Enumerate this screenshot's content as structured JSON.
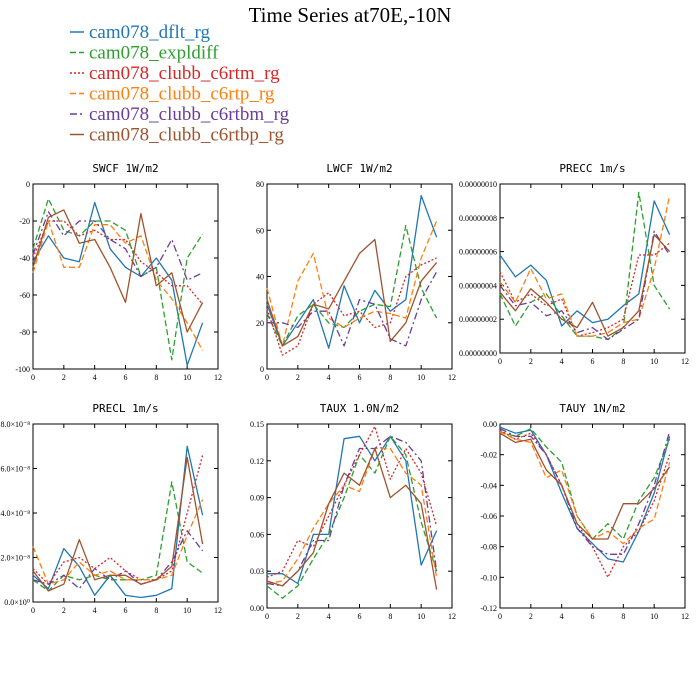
{
  "title": "Time Series at70E,-10N",
  "colors": {
    "axis": "#000000",
    "background": "#ffffff"
  },
  "legend": [
    {
      "name": "cam078_dflt_rg",
      "color": "#1f77b4",
      "dash": "solid"
    },
    {
      "name": "cam078_expldiff",
      "color": "#2ca02c",
      "dash": "dashed"
    },
    {
      "name": "cam078_clubb_c6rtm_rg",
      "color": "#d62728",
      "dash": "dotted"
    },
    {
      "name": "cam078_clubb_c6rtp_rg",
      "color": "#ff7f0e",
      "dash": "dashed"
    },
    {
      "name": "cam078_clubb_c6rtbm_rg",
      "color": "#6a3d9a",
      "dash": "dashdot"
    },
    {
      "name": "cam078_clubb_c6rtbp_rg",
      "color": "#a0522d",
      "dash": "solid"
    }
  ],
  "chart_data": [
    {
      "type": "line",
      "title": "SWCF   1W/m2",
      "x": [
        0,
        1,
        2,
        3,
        4,
        5,
        6,
        7,
        8,
        9,
        10,
        11
      ],
      "xlim": [
        0,
        12
      ],
      "ylim": [
        -100,
        0
      ],
      "xticks": [
        0,
        2,
        4,
        6,
        8,
        10,
        12
      ],
      "yticks": [
        0,
        -20,
        -40,
        -60,
        -80,
        -100
      ],
      "ytick_labels": [
        "0",
        "-20",
        "-40",
        "-60",
        "-80",
        "-100"
      ],
      "series": [
        {
          "name": "cam078_dflt_rg",
          "values": [
            -42,
            -28,
            -40,
            -42,
            -10,
            -35,
            -45,
            -50,
            -40,
            -52,
            -98,
            -75
          ]
        },
        {
          "name": "cam078_expldiff",
          "values": [
            -35,
            -8,
            -25,
            -28,
            -20,
            -20,
            -25,
            -50,
            -45,
            -95,
            -40,
            -27
          ]
        },
        {
          "name": "cam078_clubb_c6rtm_rg",
          "values": [
            -40,
            -20,
            -20,
            -28,
            -25,
            -30,
            -30,
            -42,
            -48,
            -55,
            -55,
            -65
          ]
        },
        {
          "name": "cam078_clubb_c6rtp_rg",
          "values": [
            -48,
            -20,
            -45,
            -45,
            -22,
            -22,
            -32,
            -28,
            -52,
            -62,
            -75,
            -90
          ]
        },
        {
          "name": "cam078_clubb_c6rtbm_rg",
          "values": [
            -38,
            -15,
            -28,
            -20,
            -20,
            -30,
            -35,
            -50,
            -45,
            -30,
            -52,
            -48
          ]
        },
        {
          "name": "cam078_clubb_c6rtbp_rg",
          "values": [
            -45,
            -18,
            -14,
            -32,
            -30,
            -45,
            -64,
            -16,
            -55,
            -48,
            -80,
            -64
          ]
        }
      ]
    },
    {
      "type": "line",
      "title": "LWCF   1W/m2",
      "x": [
        0,
        1,
        2,
        3,
        4,
        5,
        6,
        7,
        8,
        9,
        10,
        11
      ],
      "xlim": [
        0,
        12
      ],
      "ylim": [
        0,
        80
      ],
      "xticks": [
        0,
        2,
        4,
        6,
        8,
        10,
        12
      ],
      "yticks": [
        0,
        20,
        40,
        60,
        80
      ],
      "ytick_labels": [
        "0",
        "20",
        "40",
        "60",
        "80"
      ],
      "series": [
        {
          "name": "cam078_dflt_rg",
          "values": [
            28,
            10,
            20,
            30,
            9,
            36,
            20,
            34,
            25,
            30,
            75,
            57
          ]
        },
        {
          "name": "cam078_expldiff",
          "values": [
            24,
            10,
            23,
            28,
            20,
            18,
            25,
            28,
            27,
            62,
            35,
            22
          ]
        },
        {
          "name": "cam078_clubb_c6rtm_rg",
          "values": [
            26,
            6,
            10,
            28,
            33,
            23,
            25,
            18,
            20,
            40,
            45,
            48
          ]
        },
        {
          "name": "cam078_clubb_c6rtp_rg",
          "values": [
            35,
            10,
            38,
            50,
            22,
            18,
            22,
            25,
            24,
            22,
            48,
            64
          ]
        },
        {
          "name": "cam078_clubb_c6rtbm_rg",
          "values": [
            20,
            20,
            18,
            25,
            25,
            10,
            30,
            28,
            13,
            10,
            30,
            42
          ]
        },
        {
          "name": "cam078_clubb_c6rtbp_rg",
          "values": [
            30,
            10,
            14,
            28,
            26,
            38,
            50,
            56,
            12,
            20,
            38,
            46
          ]
        }
      ]
    },
    {
      "type": "line",
      "title": "PRECC   1m/s",
      "x": [
        0,
        1,
        2,
        3,
        4,
        5,
        6,
        7,
        8,
        9,
        10,
        11
      ],
      "xlim": [
        0,
        12
      ],
      "ylim": [
        0,
        1e-07
      ],
      "xticks": [
        0,
        2,
        4,
        6,
        8,
        10,
        12
      ],
      "yticks": [
        0,
        2e-08,
        4e-08,
        6e-08,
        8e-08,
        1e-07
      ],
      "ytick_labels": [
        "0.00000000",
        "0.00000002",
        "0.00000004",
        "0.00000006",
        "0.00000008",
        "0.00000010"
      ],
      "series": [
        {
          "name": "cam078_dflt_rg",
          "values": [
            5.8e-08,
            4.5e-08,
            5.2e-08,
            4.3e-08,
            1.6e-08,
            2.5e-08,
            1.8e-08,
            2e-08,
            2.8e-08,
            3.5e-08,
            9e-08,
            7e-08
          ]
        },
        {
          "name": "cam078_expldiff",
          "values": [
            3.5e-08,
            1.6e-08,
            3e-08,
            3.5e-08,
            2.2e-08,
            1e-08,
            1e-08,
            8e-09,
            1.5e-08,
            9.5e-08,
            4e-08,
            2.6e-08
          ]
        },
        {
          "name": "cam078_clubb_c6rtm_rg",
          "values": [
            4.8e-08,
            3e-08,
            3.5e-08,
            2.8e-08,
            3.2e-08,
            1e-08,
            1.2e-08,
            1.5e-08,
            2e-08,
            5.8e-08,
            5.8e-08,
            6.5e-08
          ]
        },
        {
          "name": "cam078_clubb_c6rtp_rg",
          "values": [
            4.2e-08,
            3e-08,
            5e-08,
            3.2e-08,
            3.5e-08,
            1e-08,
            1e-08,
            1.2e-08,
            1.8e-08,
            2e-08,
            5e-08,
            9.3e-08
          ]
        },
        {
          "name": "cam078_clubb_c6rtbm_rg",
          "values": [
            4e-08,
            2.8e-08,
            3e-08,
            2.2e-08,
            2.5e-08,
            1.2e-08,
            1.5e-08,
            8e-09,
            1.4e-08,
            2e-08,
            7.2e-08,
            5.8e-08
          ]
        },
        {
          "name": "cam078_clubb_c6rtbp_rg",
          "values": [
            3.6e-08,
            2.5e-08,
            3.8e-08,
            3e-08,
            2e-08,
            1.5e-08,
            3e-08,
            1e-08,
            1.5e-08,
            2.5e-08,
            7e-08,
            6e-08
          ]
        }
      ]
    },
    {
      "type": "line",
      "title": "PRECL   1m/s",
      "x": [
        0,
        1,
        2,
        3,
        4,
        5,
        6,
        7,
        8,
        9,
        10,
        11
      ],
      "xlim": [
        0,
        12
      ],
      "ylim": [
        0,
        8e-08
      ],
      "xticks": [
        0,
        2,
        4,
        6,
        8,
        10,
        12
      ],
      "yticks": [
        0,
        2e-08,
        4e-08,
        6e-08,
        8e-08
      ],
      "ytick_labels": [
        "0.0×10⁰",
        "2.0×10⁻⁸",
        "4.0×10⁻⁸",
        "6.0×10⁻⁸",
        "8.0×10⁻⁸"
      ],
      "series": [
        {
          "name": "cam078_dflt_rg",
          "values": [
            1.2e-08,
            6e-09,
            2.4e-08,
            1.6e-08,
            3e-09,
            1.2e-08,
            3e-09,
            2e-09,
            3e-09,
            6e-09,
            7e-08,
            3.9e-08
          ]
        },
        {
          "name": "cam078_expldiff",
          "values": [
            1e-08,
            5e-09,
            1.2e-08,
            1e-08,
            1.2e-08,
            1e-08,
            1e-08,
            1e-08,
            1.2e-08,
            5.4e-08,
            1.8e-08,
            1.3e-08
          ]
        },
        {
          "name": "cam078_clubb_c6rtm_rg",
          "values": [
            1.5e-08,
            8e-09,
            1.8e-08,
            2e-08,
            1.5e-08,
            2e-08,
            1.4e-08,
            1e-08,
            1e-08,
            1.4e-08,
            4e-08,
            6.6e-08
          ]
        },
        {
          "name": "cam078_clubb_c6rtp_rg",
          "values": [
            2.5e-08,
            8e-09,
            1e-08,
            1.8e-08,
            1.2e-08,
            1.4e-08,
            1e-08,
            1e-08,
            1e-08,
            1.2e-08,
            3e-08,
            4.6e-08
          ]
        },
        {
          "name": "cam078_clubb_c6rtbm_rg",
          "values": [
            1e-08,
            8e-09,
            1.2e-08,
            6e-09,
            1.5e-08,
            1e-08,
            1.4e-08,
            8e-09,
            1e-08,
            1.8e-08,
            3.2e-08,
            2.3e-08
          ]
        },
        {
          "name": "cam078_clubb_c6rtbp_rg",
          "values": [
            1.4e-08,
            5e-09,
            8e-09,
            2.8e-08,
            1e-08,
            1.2e-08,
            1.2e-08,
            8e-09,
            1e-08,
            1.6e-08,
            6.5e-08,
            2.6e-08
          ]
        }
      ]
    },
    {
      "type": "line",
      "title": "TAUX   1.0N/m2",
      "x": [
        0,
        1,
        2,
        3,
        4,
        5,
        6,
        7,
        8,
        9,
        10,
        11
      ],
      "xlim": [
        0,
        12
      ],
      "ylim": [
        0,
        0.15
      ],
      "xticks": [
        0,
        2,
        4,
        6,
        8,
        10,
        12
      ],
      "yticks": [
        0,
        0.03,
        0.06,
        0.09,
        0.12,
        0.15
      ],
      "ytick_labels": [
        "0.00",
        "0.03",
        "0.06",
        "0.09",
        "0.12",
        "0.15"
      ],
      "series": [
        {
          "name": "cam078_dflt_rg",
          "values": [
            0.028,
            0.028,
            0.02,
            0.06,
            0.06,
            0.138,
            0.14,
            0.12,
            0.14,
            0.12,
            0.035,
            0.063
          ]
        },
        {
          "name": "cam078_expldiff",
          "values": [
            0.018,
            0.008,
            0.018,
            0.04,
            0.06,
            0.09,
            0.125,
            0.11,
            0.14,
            0.125,
            0.07,
            0.03
          ]
        },
        {
          "name": "cam078_clubb_c6rtm_rg",
          "values": [
            0.025,
            0.03,
            0.055,
            0.05,
            0.075,
            0.1,
            0.125,
            0.148,
            0.105,
            0.13,
            0.11,
            0.067
          ]
        },
        {
          "name": "cam078_clubb_c6rtp_rg",
          "values": [
            0.02,
            0.022,
            0.04,
            0.065,
            0.085,
            0.1,
            0.095,
            0.13,
            0.13,
            0.11,
            0.1,
            0.025
          ]
        },
        {
          "name": "cam078_clubb_c6rtbm_rg",
          "values": [
            0.02,
            0.018,
            0.03,
            0.055,
            0.055,
            0.1,
            0.13,
            0.13,
            0.14,
            0.135,
            0.12,
            0.03
          ]
        },
        {
          "name": "cam078_clubb_c6rtbp_rg",
          "values": [
            0.022,
            0.018,
            0.03,
            0.045,
            0.085,
            0.11,
            0.1,
            0.13,
            0.09,
            0.1,
            0.085,
            0.015
          ]
        }
      ]
    },
    {
      "type": "line",
      "title": "TAUY   1N/m2",
      "x": [
        0,
        1,
        2,
        3,
        4,
        5,
        6,
        7,
        8,
        9,
        10,
        11
      ],
      "xlim": [
        0,
        12
      ],
      "ylim": [
        -0.12,
        0
      ],
      "xticks": [
        0,
        2,
        4,
        6,
        8,
        10,
        12
      ],
      "yticks": [
        0,
        -0.02,
        -0.04,
        -0.06,
        -0.08,
        -0.1,
        -0.12
      ],
      "ytick_labels": [
        "0.00",
        "-0.02",
        "-0.04",
        "-0.06",
        "-0.08",
        "-0.10",
        "-0.12"
      ],
      "series": [
        {
          "name": "cam078_dflt_rg",
          "values": [
            -0.002,
            -0.006,
            -0.004,
            -0.02,
            -0.045,
            -0.068,
            -0.078,
            -0.088,
            -0.09,
            -0.07,
            -0.045,
            -0.008
          ]
        },
        {
          "name": "cam078_expldiff",
          "values": [
            -0.005,
            -0.008,
            -0.003,
            -0.015,
            -0.025,
            -0.06,
            -0.075,
            -0.065,
            -0.075,
            -0.05,
            -0.035,
            -0.01
          ]
        },
        {
          "name": "cam078_clubb_c6rtm_rg",
          "values": [
            -0.004,
            -0.01,
            -0.006,
            -0.02,
            -0.04,
            -0.065,
            -0.08,
            -0.1,
            -0.08,
            -0.07,
            -0.05,
            -0.02
          ]
        },
        {
          "name": "cam078_clubb_c6rtp_rg",
          "values": [
            -0.005,
            -0.01,
            -0.012,
            -0.035,
            -0.03,
            -0.06,
            -0.075,
            -0.07,
            -0.078,
            -0.068,
            -0.062,
            -0.025
          ]
        },
        {
          "name": "cam078_clubb_c6rtbm_rg",
          "values": [
            -0.003,
            -0.008,
            -0.008,
            -0.02,
            -0.04,
            -0.068,
            -0.08,
            -0.085,
            -0.085,
            -0.065,
            -0.04,
            -0.005
          ]
        },
        {
          "name": "cam078_clubb_c6rtbp_rg",
          "values": [
            -0.006,
            -0.012,
            -0.01,
            -0.03,
            -0.04,
            -0.065,
            -0.075,
            -0.075,
            -0.052,
            -0.052,
            -0.042,
            -0.028
          ]
        }
      ]
    }
  ]
}
